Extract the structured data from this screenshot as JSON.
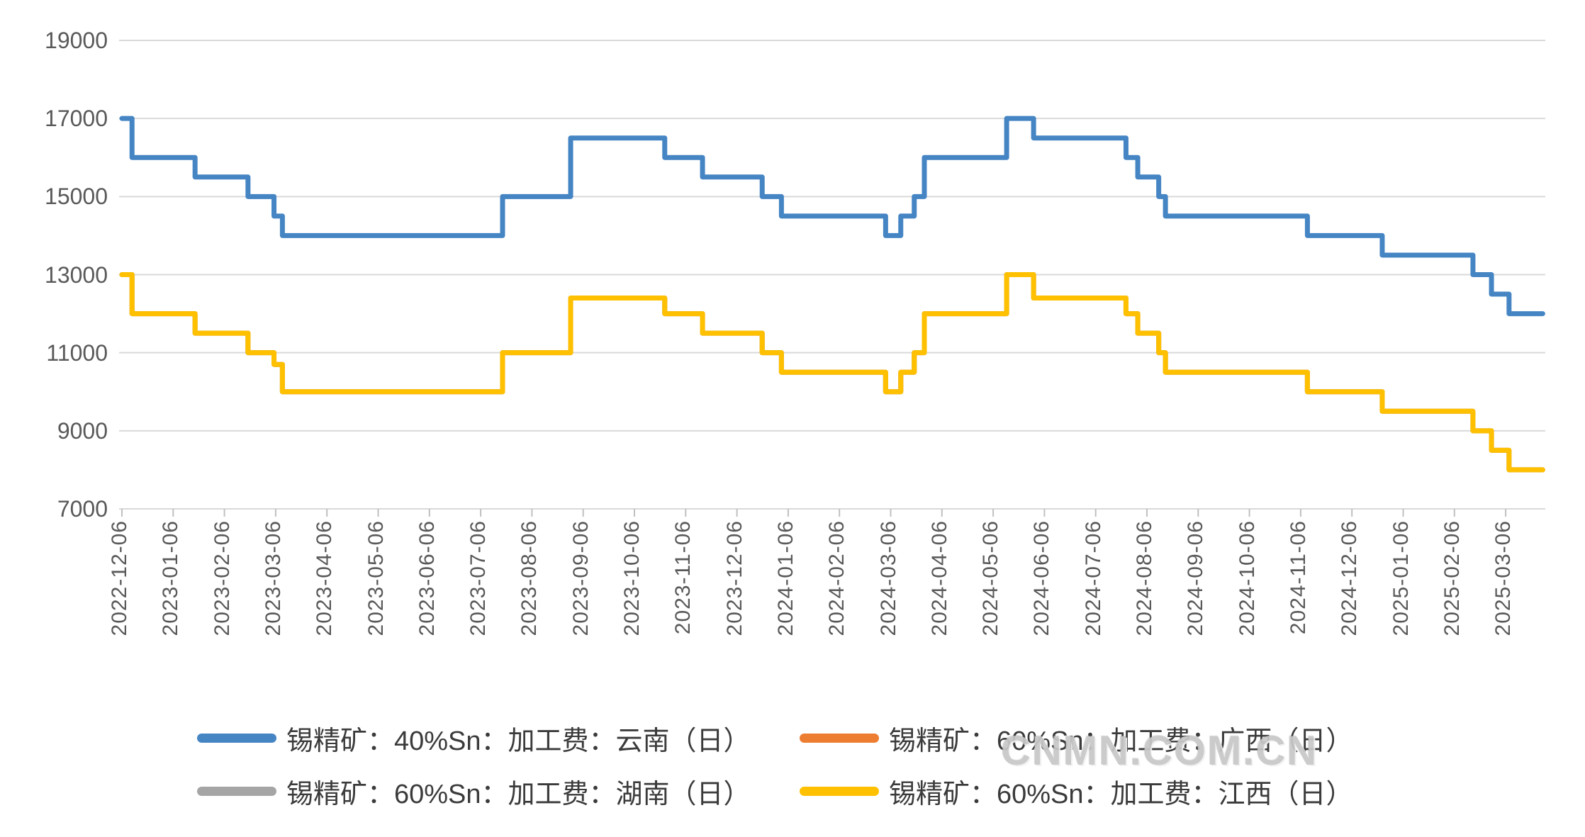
{
  "watermark": "CNMN.COM.CN",
  "legend": {
    "position": "bottom",
    "items": [
      {
        "label": "锡精矿：40%Sn：加工费：云南（日）",
        "color": "#4585C4",
        "series_id": "yunnan-40sn"
      },
      {
        "label": "锡精矿：60%Sn：加工费：广西（日）",
        "color": "#ED7D31",
        "series_id": "guangxi-60sn"
      },
      {
        "label": "锡精矿：60%Sn：加工费：湖南（日）",
        "color": "#A5A5A5",
        "series_id": "hunan-60sn"
      },
      {
        "label": "锡精矿：60%Sn：加工费：江西（日）",
        "color": "#FFC000",
        "series_id": "jiangxi-60sn"
      }
    ]
  },
  "chart_data": {
    "type": "line",
    "line_style": "step-after",
    "title": "",
    "xlabel": "",
    "ylabel": "",
    "grid": "horizontal",
    "legend_position": "bottom",
    "y_axis": {
      "min": 7000,
      "max": 19000,
      "tick_step": 2000,
      "ticks": [
        19000,
        17000,
        15000,
        13000,
        11000,
        9000,
        7000
      ]
    },
    "x_axis": {
      "start": "2022-12-06",
      "end": "2025-03-28",
      "labels": [
        "2022-12-06",
        "2023-01-06",
        "2023-02-06",
        "2023-03-06",
        "2023-04-06",
        "2023-05-06",
        "2023-06-06",
        "2023-07-06",
        "2023-08-06",
        "2023-09-06",
        "2023-10-06",
        "2023-11-06",
        "2023-12-06",
        "2024-01-06",
        "2024-02-06",
        "2024-03-06",
        "2024-04-06",
        "2024-05-06",
        "2024-06-06",
        "2024-07-06",
        "2024-08-06",
        "2024-09-06",
        "2024-10-06",
        "2024-11-06",
        "2024-12-06",
        "2025-01-06",
        "2025-02-06",
        "2025-03-06"
      ]
    },
    "series": [
      {
        "id": "guangxi-60sn",
        "name": "锡精矿：60%Sn：加工费：广西（日）",
        "region": "广西",
        "grade": "60%Sn",
        "color": "#ED7D31",
        "visible_in_plot": false,
        "steps": [
          [
            "2022-12-06",
            13000
          ],
          [
            "2022-12-12",
            12000
          ],
          [
            "2023-01-19",
            11500
          ],
          [
            "2023-02-20",
            11000
          ],
          [
            "2023-03-05",
            10700
          ],
          [
            "2023-03-10",
            10000
          ],
          [
            "2023-07-19",
            11000
          ],
          [
            "2023-08-29",
            12400
          ],
          [
            "2023-10-24",
            12000
          ],
          [
            "2023-11-16",
            11500
          ],
          [
            "2023-12-21",
            11000
          ],
          [
            "2024-01-02",
            10500
          ],
          [
            "2024-03-03",
            10000
          ],
          [
            "2024-03-12",
            10500
          ],
          [
            "2024-03-20",
            11000
          ],
          [
            "2024-03-26",
            12000
          ],
          [
            "2024-05-14",
            13000
          ],
          [
            "2024-05-30",
            12400
          ],
          [
            "2024-07-24",
            12000
          ],
          [
            "2024-07-31",
            11500
          ],
          [
            "2024-08-13",
            11000
          ],
          [
            "2024-08-17",
            10500
          ],
          [
            "2024-11-10",
            10000
          ],
          [
            "2024-12-24",
            9500
          ],
          [
            "2025-02-17",
            9000
          ],
          [
            "2025-02-28",
            8500
          ],
          [
            "2025-03-08",
            8000
          ],
          [
            "2025-03-28",
            8000
          ]
        ]
      },
      {
        "id": "hunan-60sn",
        "name": "锡精矿：60%Sn：加工费：湖南（日）",
        "region": "湖南",
        "grade": "60%Sn",
        "color": "#A5A5A5",
        "visible_in_plot": false,
        "steps": [
          [
            "2022-12-06",
            13000
          ],
          [
            "2022-12-12",
            12000
          ],
          [
            "2023-01-19",
            11500
          ],
          [
            "2023-02-20",
            11000
          ],
          [
            "2023-03-05",
            10700
          ],
          [
            "2023-03-10",
            10000
          ],
          [
            "2023-07-19",
            11000
          ],
          [
            "2023-08-29",
            12400
          ],
          [
            "2023-10-24",
            12000
          ],
          [
            "2023-11-16",
            11500
          ],
          [
            "2023-12-21",
            11000
          ],
          [
            "2024-01-02",
            10500
          ],
          [
            "2024-03-03",
            10000
          ],
          [
            "2024-03-12",
            10500
          ],
          [
            "2024-03-20",
            11000
          ],
          [
            "2024-03-26",
            12000
          ],
          [
            "2024-05-14",
            13000
          ],
          [
            "2024-05-30",
            12400
          ],
          [
            "2024-07-24",
            12000
          ],
          [
            "2024-07-31",
            11500
          ],
          [
            "2024-08-13",
            11000
          ],
          [
            "2024-08-17",
            10500
          ],
          [
            "2024-11-10",
            10000
          ],
          [
            "2024-12-24",
            9500
          ],
          [
            "2025-02-17",
            9000
          ],
          [
            "2025-02-28",
            8500
          ],
          [
            "2025-03-08",
            8000
          ],
          [
            "2025-03-28",
            8000
          ]
        ]
      },
      {
        "id": "jiangxi-60sn",
        "name": "锡精矿：60%Sn：加工费：江西（日）",
        "region": "江西",
        "grade": "60%Sn",
        "color": "#FFC000",
        "visible_in_plot": true,
        "steps": [
          [
            "2022-12-06",
            13000
          ],
          [
            "2022-12-12",
            12000
          ],
          [
            "2023-01-19",
            11500
          ],
          [
            "2023-02-20",
            11000
          ],
          [
            "2023-03-05",
            10700
          ],
          [
            "2023-03-10",
            10000
          ],
          [
            "2023-07-19",
            11000
          ],
          [
            "2023-08-29",
            12400
          ],
          [
            "2023-10-24",
            12000
          ],
          [
            "2023-11-16",
            11500
          ],
          [
            "2023-12-21",
            11000
          ],
          [
            "2024-01-02",
            10500
          ],
          [
            "2024-03-03",
            10000
          ],
          [
            "2024-03-12",
            10500
          ],
          [
            "2024-03-20",
            11000
          ],
          [
            "2024-03-26",
            12000
          ],
          [
            "2024-05-14",
            13000
          ],
          [
            "2024-05-30",
            12400
          ],
          [
            "2024-07-24",
            12000
          ],
          [
            "2024-07-31",
            11500
          ],
          [
            "2024-08-13",
            11000
          ],
          [
            "2024-08-17",
            10500
          ],
          [
            "2024-11-10",
            10000
          ],
          [
            "2024-12-24",
            9500
          ],
          [
            "2025-02-17",
            9000
          ],
          [
            "2025-02-28",
            8500
          ],
          [
            "2025-03-08",
            8000
          ],
          [
            "2025-03-28",
            8000
          ]
        ]
      },
      {
        "id": "yunnan-40sn",
        "name": "锡精矿：40%Sn：加工费：云南（日）",
        "region": "云南",
        "grade": "40%Sn",
        "color": "#4585C4",
        "visible_in_plot": true,
        "steps": [
          [
            "2022-12-06",
            17000
          ],
          [
            "2022-12-12",
            16000
          ],
          [
            "2023-01-19",
            15500
          ],
          [
            "2023-02-20",
            15000
          ],
          [
            "2023-03-05",
            14500
          ],
          [
            "2023-03-10",
            14000
          ],
          [
            "2023-07-19",
            15000
          ],
          [
            "2023-08-29",
            16500
          ],
          [
            "2023-10-24",
            16000
          ],
          [
            "2023-11-16",
            15500
          ],
          [
            "2023-12-21",
            15000
          ],
          [
            "2024-01-02",
            14500
          ],
          [
            "2024-03-03",
            14000
          ],
          [
            "2024-03-12",
            14500
          ],
          [
            "2024-03-20",
            15000
          ],
          [
            "2024-03-26",
            16000
          ],
          [
            "2024-05-14",
            17000
          ],
          [
            "2024-05-30",
            16500
          ],
          [
            "2024-07-24",
            16000
          ],
          [
            "2024-07-31",
            15500
          ],
          [
            "2024-08-13",
            15000
          ],
          [
            "2024-08-17",
            14500
          ],
          [
            "2024-11-10",
            14000
          ],
          [
            "2024-12-24",
            13500
          ],
          [
            "2025-02-17",
            13000
          ],
          [
            "2025-02-28",
            12500
          ],
          [
            "2025-03-08",
            12000
          ],
          [
            "2025-03-28",
            12000
          ]
        ]
      }
    ]
  }
}
